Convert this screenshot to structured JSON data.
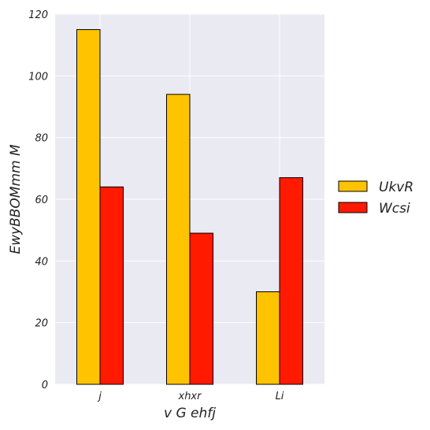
{
  "chart_data": {
    "type": "bar",
    "title": "",
    "xlabel": "v G ehfj",
    "ylabel": "EwyBBOMmm M",
    "categories": [
      "j",
      "xhxr",
      "Li"
    ],
    "series": [
      {
        "name": "UkvR",
        "values": [
          115,
          94,
          30
        ],
        "color": "#FFC300"
      },
      {
        "name": "Wcsi",
        "values": [
          64,
          49,
          67
        ],
        "color": "#FF1A00"
      }
    ],
    "ylim": [
      0,
      120
    ],
    "yticks": [
      0,
      20,
      40,
      60,
      80,
      100,
      120
    ],
    "grid": true,
    "legend_position": "right",
    "colors": {
      "plot_background": "#EAEAF2",
      "grid": "#FFFFFF",
      "bar_edge": "#000000"
    }
  }
}
